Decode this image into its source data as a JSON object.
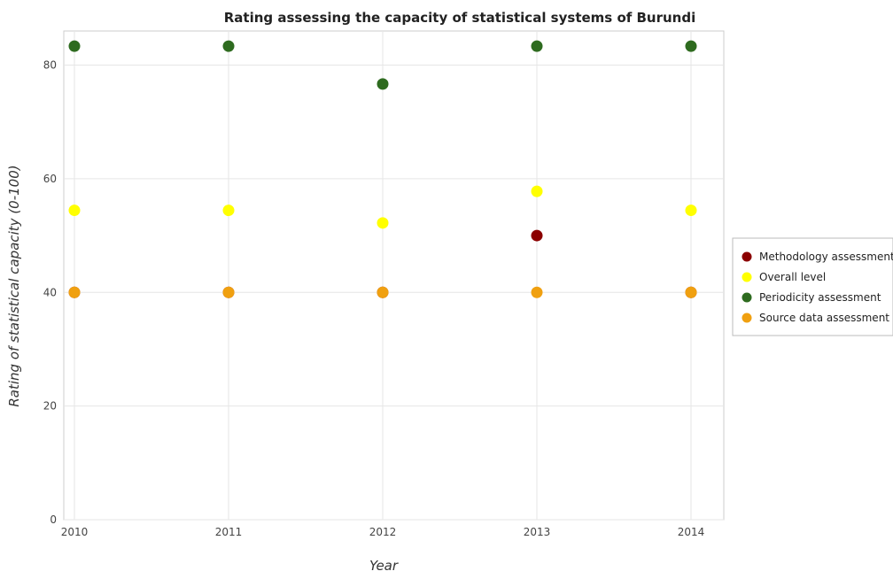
{
  "chart_data": {
    "type": "scatter",
    "title": "Rating assessing the capacity of statistical systems of Burundi",
    "xlabel": "Year",
    "ylabel": "Rating of statistical capacity (0-100)",
    "categories": [
      "2010",
      "2011",
      "2012",
      "2013",
      "2014"
    ],
    "ylim": [
      0,
      86
    ],
    "yticks": [
      0,
      20,
      40,
      60,
      80
    ],
    "grid": true,
    "legend_position": "right",
    "series": [
      {
        "name": "Methodology assessment",
        "color": "#8b0000",
        "values": [
          40,
          40,
          40,
          50,
          40
        ]
      },
      {
        "name": "Overall level",
        "color": "#ffff00",
        "values": [
          54.44,
          54.44,
          52.22,
          57.78,
          54.44
        ]
      },
      {
        "name": "Periodicity assessment",
        "color": "#2e6b1f",
        "values": [
          83.33,
          83.33,
          76.67,
          83.33,
          83.33
        ]
      },
      {
        "name": "Source data assessment",
        "color": "#f0a010",
        "values": [
          40,
          40,
          40,
          40,
          40
        ]
      }
    ]
  }
}
